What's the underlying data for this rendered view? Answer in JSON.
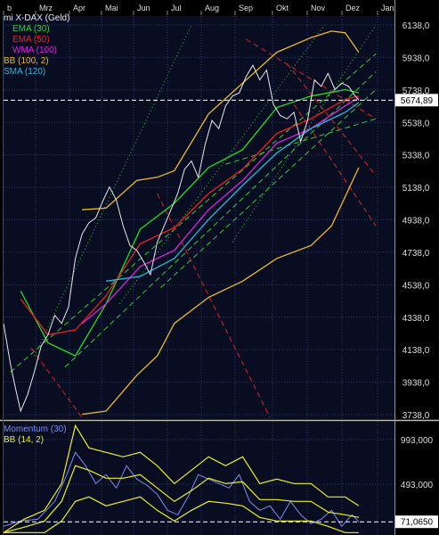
{
  "chart_data": [
    {
      "type": "line",
      "title": "mi X-DAX (Geld)",
      "x_ticks": [
        "b",
        "Mrz",
        "Apr",
        "Mai",
        "Jun",
        "Jul",
        "Aug",
        "Sep",
        "Okt",
        "Nov",
        "Dez",
        "Jan"
      ],
      "y_ticks": [
        "6138,0",
        "5938,0",
        "5738,0",
        "5538,0",
        "5338,0",
        "5138,0",
        "4938,0",
        "4738,0",
        "4538,0",
        "4338,0",
        "4138,0",
        "3938,0",
        "3738,0"
      ],
      "ylim": [
        3738,
        6138
      ],
      "last_value_label": "5674,89",
      "last_value": 5674.89,
      "grid": true,
      "legend_placement": "top-left",
      "series": [
        {
          "name": "EMA (30)",
          "color": "#22dd22",
          "x": [
            0.5,
            1.3,
            2.1,
            3,
            4,
            5,
            6,
            7,
            8,
            9,
            10,
            10.4
          ],
          "values": [
            4500,
            4180,
            4100,
            4420,
            4880,
            5040,
            5260,
            5370,
            5630,
            5700,
            5740,
            5720
          ]
        },
        {
          "name": "EMA (50)",
          "color": "#ee2020",
          "x": [
            0.5,
            1.3,
            2.1,
            3,
            4,
            5,
            6,
            7,
            8,
            9,
            10,
            10.4
          ],
          "values": [
            4450,
            4230,
            4260,
            4470,
            4790,
            4890,
            5100,
            5250,
            5470,
            5560,
            5680,
            5700
          ]
        },
        {
          "name": "WMA (100)",
          "color": "#dd22dd",
          "x": [
            2.3,
            3,
            4,
            5,
            6,
            7,
            8,
            9,
            10,
            10.4
          ],
          "values": [
            4300,
            4420,
            4650,
            4750,
            5000,
            5180,
            5410,
            5500,
            5640,
            5690
          ]
        },
        {
          "name": "BB (100, 2)",
          "color": "#eebb22",
          "x": [
            2.3,
            3,
            3.9,
            4.5,
            5,
            6,
            7,
            8,
            9,
            9.6,
            10,
            10.4
          ],
          "values": [
            5000,
            5010,
            5180,
            5200,
            5240,
            5590,
            5780,
            5970,
            6060,
            6100,
            6090,
            5970
          ]
        },
        {
          "name": "BB (100, 2) lower",
          "color": "#eebb22",
          "x": [
            2.3,
            3,
            3.9,
            4.5,
            5,
            6,
            7,
            8,
            9,
            9.6,
            10,
            10.4
          ],
          "values": [
            3740,
            3760,
            3980,
            4100,
            4300,
            4460,
            4560,
            4700,
            4780,
            4900,
            5080,
            5260
          ]
        },
        {
          "name": "SMA (120)",
          "color": "#22bbdd",
          "x": [
            3,
            4,
            5,
            6,
            7,
            8,
            9,
            10,
            10.4
          ],
          "values": [
            4560,
            4590,
            4700,
            4940,
            5150,
            5350,
            5500,
            5600,
            5660
          ]
        }
      ],
      "price": {
        "color": "#e8e8e8",
        "x": [
          0,
          0.2,
          0.35,
          0.5,
          0.7,
          0.9,
          1.1,
          1.3,
          1.5,
          1.7,
          1.9,
          2.1,
          2.3,
          2.5,
          2.7,
          2.9,
          3.1,
          3.3,
          3.5,
          3.7,
          3.9,
          4.1,
          4.3,
          4.5,
          4.7,
          4.9,
          5.1,
          5.3,
          5.5,
          5.7,
          5.9,
          6.1,
          6.3,
          6.5,
          6.7,
          6.9,
          7.1,
          7.3,
          7.5,
          7.7,
          7.9,
          8.1,
          8.3,
          8.5,
          8.7,
          8.9,
          9.1,
          9.3,
          9.5,
          9.7,
          9.9,
          10.1,
          10.3,
          10.4
        ],
        "values": [
          4300,
          4050,
          3900,
          3760,
          3860,
          4000,
          4160,
          4230,
          4350,
          4300,
          4400,
          4700,
          4850,
          4920,
          4950,
          5050,
          5140,
          5060,
          4900,
          4780,
          4750,
          4680,
          4600,
          4800,
          4900,
          5000,
          5100,
          5250,
          5300,
          5200,
          5400,
          5550,
          5500,
          5640,
          5700,
          5720,
          5820,
          5890,
          5800,
          5860,
          5650,
          5580,
          5560,
          5600,
          5420,
          5550,
          5800,
          5760,
          5840,
          5740,
          5780,
          5760,
          5700,
          5675
        ]
      },
      "trendlines": [
        {
          "style": "dashed",
          "color": "#33cc33",
          "x": [
            0.2,
            10.9
          ],
          "values": [
            4000,
            5960
          ]
        },
        {
          "style": "dashed",
          "color": "#33cc33",
          "x": [
            1.8,
            10.9
          ],
          "values": [
            4030,
            5850
          ]
        },
        {
          "style": "dashed",
          "color": "#33cc33",
          "x": [
            4.6,
            10.9
          ],
          "values": [
            4520,
            5740
          ]
        },
        {
          "style": "dashed",
          "color": "#33cc33",
          "x": [
            6.5,
            10.9
          ],
          "values": [
            5280,
            5560
          ]
        },
        {
          "style": "dotted",
          "color": "#33cc33",
          "x": [
            0.9,
            5.5
          ],
          "values": [
            4100,
            6138
          ]
        },
        {
          "style": "dotted",
          "color": "#33cc33",
          "x": [
            3.4,
            9.4
          ],
          "values": [
            4420,
            6138
          ]
        },
        {
          "style": "dotted",
          "color": "#33cc33",
          "x": [
            6.7,
            10.9
          ],
          "values": [
            4800,
            6138
          ]
        },
        {
          "style": "dashed",
          "color": "#dd2222",
          "x": [
            0.8,
            2.3
          ],
          "values": [
            4150,
            3720
          ]
        },
        {
          "style": "dashed",
          "color": "#dd2222",
          "x": [
            4.5,
            7.8
          ],
          "values": [
            5100,
            3720
          ]
        },
        {
          "style": "dashed",
          "color": "#dd2222",
          "x": [
            7.1,
            10.9
          ],
          "values": [
            6050,
            5560
          ]
        },
        {
          "style": "dashed",
          "color": "#dd2222",
          "x": [
            8.3,
            10.9
          ],
          "values": [
            5900,
            5210
          ]
        },
        {
          "style": "dashed",
          "color": "#dd2222",
          "x": [
            8.5,
            10.9
          ],
          "values": [
            5650,
            4900
          ]
        }
      ]
    },
    {
      "type": "line",
      "title": "Momentum (30)",
      "y_ticks": [
        "993,000",
        "493,000"
      ],
      "ylim": [
        -50,
        1150
      ],
      "last_value_label": "71,0650",
      "last_value": 71.065,
      "legend_placement": "top-left",
      "series": [
        {
          "name": "Momentum (30)",
          "color": "#7a8cf0",
          "x": [
            0,
            0.5,
            1,
            1.5,
            1.8,
            2.1,
            2.4,
            2.7,
            3,
            3.3,
            3.6,
            3.9,
            4.2,
            4.5,
            4.8,
            5.1,
            5.4,
            5.7,
            6,
            6.3,
            6.6,
            6.9,
            7.2,
            7.5,
            7.8,
            8.1,
            8.4,
            8.7,
            9,
            9.3,
            9.6,
            9.9,
            10.2,
            10.4
          ],
          "values": [
            20,
            80,
            100,
            300,
            550,
            850,
            700,
            500,
            600,
            450,
            700,
            550,
            480,
            380,
            200,
            150,
            350,
            600,
            550,
            500,
            450,
            600,
            300,
            200,
            250,
            100,
            300,
            150,
            50,
            100,
            200,
            20,
            150,
            71
          ]
        },
        {
          "name": "BB (14, 2)",
          "color": "#eeee22",
          "x": [
            0,
            0.6,
            1.2,
            1.7,
            2.1,
            2.5,
            3,
            3.5,
            4,
            4.5,
            5,
            5.5,
            6,
            6.5,
            7,
            7.5,
            8,
            8.5,
            9,
            9.5,
            10,
            10.4
          ],
          "values": [
            -50,
            100,
            200,
            500,
            1150,
            900,
            850,
            800,
            850,
            700,
            500,
            650,
            800,
            700,
            800,
            500,
            550,
            500,
            500,
            350,
            350,
            250
          ]
        },
        {
          "name": "BB (14, 2) mid",
          "color": "#eeee22",
          "x": [
            0,
            0.6,
            1.2,
            1.7,
            2.1,
            2.5,
            3,
            3.5,
            4,
            4.5,
            5,
            5.5,
            6,
            6.5,
            7,
            7.5,
            8,
            8.5,
            9,
            9.5,
            10,
            10.4
          ],
          "values": [
            -50,
            10,
            80,
            300,
            700,
            650,
            560,
            560,
            600,
            450,
            300,
            420,
            560,
            500,
            520,
            320,
            320,
            300,
            300,
            180,
            150,
            120
          ]
        },
        {
          "name": "BB (14, 2) lower",
          "color": "#eeee22",
          "x": [
            0,
            0.6,
            1.2,
            1.7,
            2.1,
            2.5,
            3,
            3.5,
            4,
            4.5,
            5,
            5.5,
            6,
            6.5,
            7,
            7.5,
            8,
            8.5,
            9,
            9.5,
            10,
            10.4
          ],
          "values": [
            -50,
            -50,
            -50,
            80,
            300,
            350,
            250,
            300,
            350,
            200,
            80,
            200,
            300,
            280,
            250,
            120,
            80,
            80,
            80,
            20,
            -50,
            -50
          ]
        }
      ]
    }
  ]
}
